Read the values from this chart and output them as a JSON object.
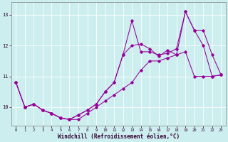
{
  "xlabel": "Windchill (Refroidissement éolien,°C)",
  "background_color": "#cceeee",
  "line_color": "#990099",
  "grid_color": "#ffffff",
  "x_values": [
    0,
    1,
    2,
    3,
    4,
    5,
    6,
    7,
    8,
    9,
    10,
    11,
    12,
    13,
    14,
    15,
    16,
    17,
    18,
    19,
    20,
    21,
    22,
    23
  ],
  "line1": [
    10.8,
    10.0,
    10.1,
    9.9,
    9.8,
    9.65,
    9.6,
    9.6,
    9.8,
    10.0,
    10.2,
    10.4,
    10.6,
    10.8,
    11.2,
    11.5,
    11.5,
    11.6,
    11.7,
    11.8,
    11.0,
    11.0,
    11.0,
    11.05
  ],
  "line2": [
    10.8,
    10.0,
    10.1,
    9.9,
    9.8,
    9.65,
    9.6,
    9.75,
    9.9,
    10.1,
    10.5,
    10.8,
    11.7,
    12.8,
    11.8,
    11.8,
    11.7,
    11.75,
    11.9,
    13.1,
    12.5,
    12.0,
    11.0,
    11.05
  ],
  "line3": [
    10.8,
    10.0,
    10.1,
    9.9,
    9.8,
    9.65,
    9.6,
    9.75,
    9.9,
    10.1,
    10.5,
    10.8,
    11.7,
    12.0,
    12.05,
    11.9,
    11.65,
    11.85,
    11.7,
    13.1,
    12.5,
    12.5,
    11.7,
    11.05
  ],
  "ylim": [
    9.4,
    13.4
  ],
  "xlim": [
    -0.5,
    23.5
  ],
  "yticks": [
    10,
    11,
    12,
    13
  ],
  "xticks": [
    0,
    1,
    2,
    3,
    4,
    5,
    6,
    7,
    8,
    9,
    10,
    11,
    12,
    13,
    14,
    15,
    16,
    17,
    18,
    19,
    20,
    21,
    22,
    23
  ]
}
